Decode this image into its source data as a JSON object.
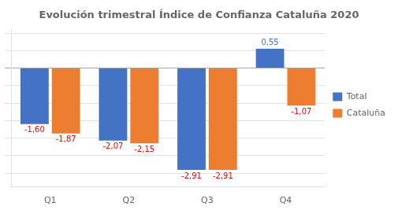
{
  "chart_data": {
    "type": "bar",
    "title": "Evolución trimestral Índice de Confianza Cataluña 2020",
    "categories": [
      "Q1",
      "Q2",
      "Q3",
      "Q4"
    ],
    "series": [
      {
        "name": "Total",
        "color": "#4472C4",
        "values": [
          -1.6,
          -2.07,
          -2.91,
          0.55
        ],
        "value_labels": [
          "-1,60",
          "-2,07",
          "-2,91",
          "0,55"
        ]
      },
      {
        "name": "Cataluña",
        "color": "#ED7D31",
        "values": [
          -1.87,
          -2.15,
          -2.91,
          -1.07
        ],
        "value_labels": [
          "-1,87",
          "-2,15",
          "-2,91",
          "-1,07"
        ]
      }
    ],
    "ylim": [
      -3.4,
      1.1
    ],
    "yticks": [
      -3,
      -2.5,
      -2,
      -1.5,
      -1,
      -0.5,
      0,
      0.5,
      1
    ],
    "grid": true,
    "legend": "right",
    "data_labels": true,
    "tick_labels": "x"
  }
}
